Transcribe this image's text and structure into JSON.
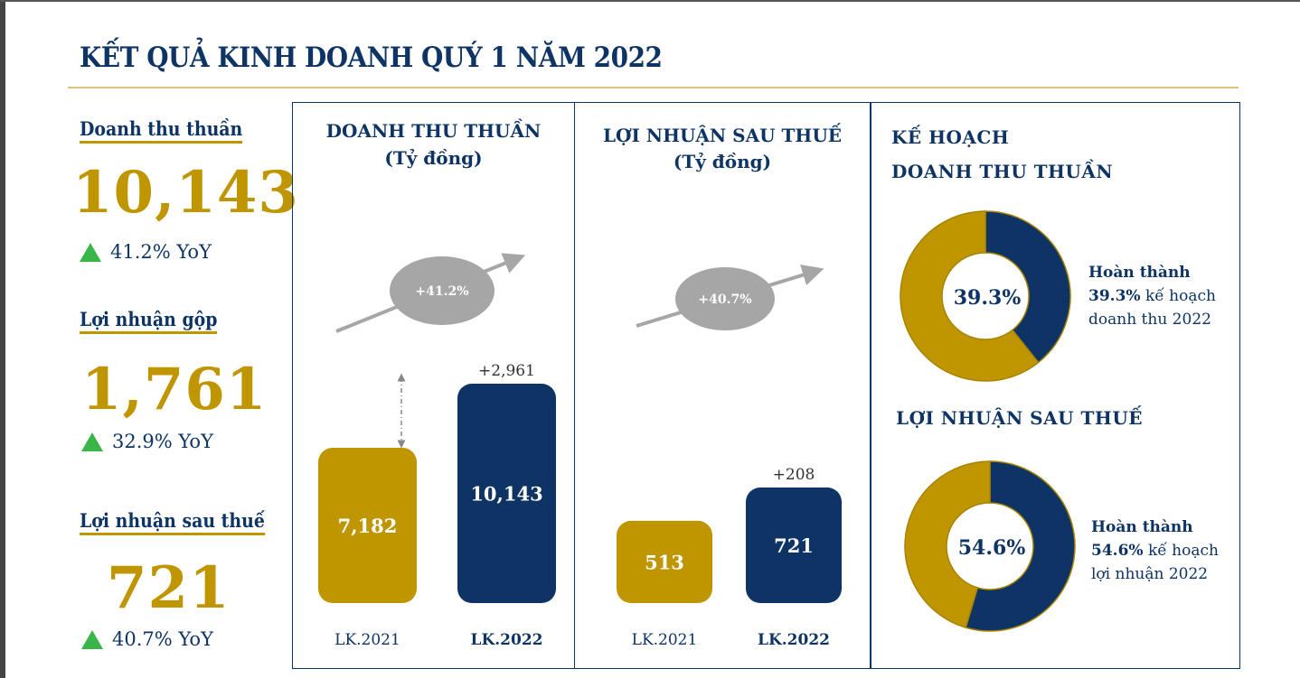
{
  "title": "KẾT QUẢ KINH DOANH QUÝ 1 NĂM 2022",
  "kpis": [
    {
      "label": "Doanh thu thuần",
      "value": "10,143",
      "yoy": "41.2% YoY"
    },
    {
      "label": "Lợi nhuận gộp",
      "value": "1,761",
      "yoy": "32.9% YoY"
    },
    {
      "label": "Lợi nhuận sau thuế",
      "value": "721",
      "yoy": "40.7% YoY"
    }
  ],
  "colors": {
    "navy": "#0d3464",
    "gold": "#bf9500",
    "gray": "#a6a6a6",
    "green": "#3ab54a"
  },
  "chart_data": [
    {
      "type": "bar",
      "title": "DOANH THU THUẦN",
      "subtitle": "(Tỷ đồng)",
      "categories": [
        "LK.2021",
        "LK.2022"
      ],
      "values": [
        7182,
        10143
      ],
      "labels": [
        "7,182",
        "10,143"
      ],
      "change_label": "+2,961",
      "growth_label": "+41.2%"
    },
    {
      "type": "bar",
      "title": "LỢI NHUẬN SAU THUẾ",
      "subtitle": "(Tỷ đồng)",
      "categories": [
        "LK.2021",
        "LK.2022"
      ],
      "values": [
        513,
        721
      ],
      "labels": [
        "513",
        "721"
      ],
      "change_label": "+208",
      "growth_label": "+40.7%"
    },
    {
      "type": "pie",
      "title": "KẾ HOẠCH",
      "subtitle": "DOANH THU THUẦN",
      "values": [
        39.3,
        60.7
      ],
      "center_label": "39.3%",
      "note_bold": "Hoàn thành",
      "note_pct": "39.3%",
      "note_rest": " kế hoạch",
      "note_line3": "doanh thu 2022"
    },
    {
      "type": "pie",
      "title": "LỢI NHUẬN SAU THUẾ",
      "values": [
        54.6,
        45.4
      ],
      "center_label": "54.6%",
      "note_bold": "Hoàn thành",
      "note_pct": "54.6%",
      "note_rest": " kế hoạch",
      "note_line3": "lợi nhuận 2022"
    }
  ]
}
